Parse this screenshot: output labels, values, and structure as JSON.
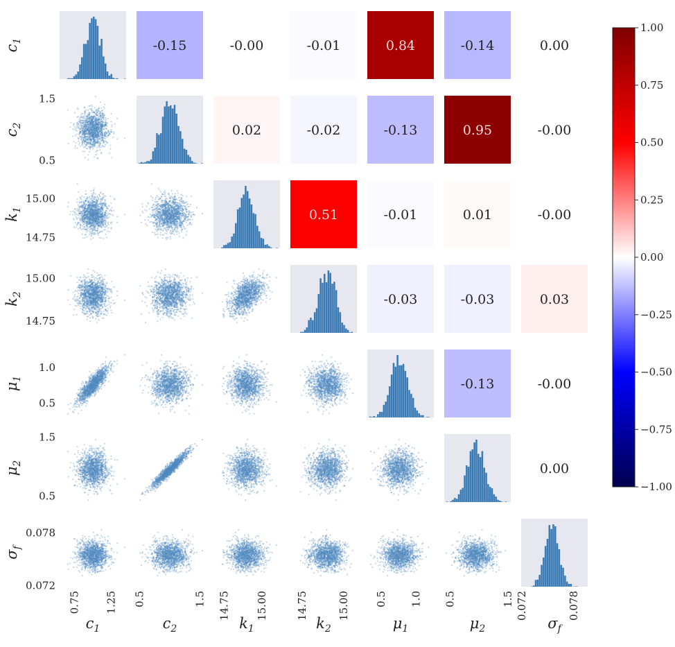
{
  "chart_data": {
    "type": "pairplot",
    "params": [
      {
        "sym": "c",
        "sub": "1"
      },
      {
        "sym": "c",
        "sub": "2"
      },
      {
        "sym": "k",
        "sub": "1"
      },
      {
        "sym": "k",
        "sub": "2"
      },
      {
        "sym": "μ",
        "sub": "1"
      },
      {
        "sym": "μ",
        "sub": "2"
      },
      {
        "sym": "σ",
        "sub": "f"
      }
    ],
    "ranges": [
      [
        0.55,
        1.45
      ],
      [
        0.45,
        1.55
      ],
      [
        14.68,
        15.12
      ],
      [
        14.68,
        15.08
      ],
      [
        0.3,
        1.25
      ],
      [
        0.4,
        1.55
      ],
      [
        0.0719,
        0.0796
      ]
    ],
    "stats": [
      {
        "mean": 1.0,
        "sd": 0.1
      },
      {
        "mean": 1.0,
        "sd": 0.15
      },
      {
        "mean": 14.9,
        "sd": 0.055
      },
      {
        "mean": 14.9,
        "sd": 0.05
      },
      {
        "mean": 0.75,
        "sd": 0.12
      },
      {
        "mean": 0.95,
        "sd": 0.15
      },
      {
        "mean": 0.0755,
        "sd": 0.0008
      }
    ],
    "correlations": [
      [
        1.0,
        -0.15,
        -0.0,
        -0.01,
        0.84,
        -0.14,
        0.0
      ],
      [
        -0.15,
        1.0,
        0.02,
        -0.02,
        -0.13,
        0.95,
        -0.0
      ],
      [
        -0.0,
        0.02,
        1.0,
        0.51,
        -0.01,
        0.01,
        -0.0
      ],
      [
        -0.01,
        -0.02,
        0.51,
        1.0,
        -0.03,
        -0.03,
        0.03
      ],
      [
        0.84,
        -0.13,
        -0.01,
        -0.03,
        1.0,
        -0.13,
        -0.0
      ],
      [
        -0.14,
        0.95,
        0.01,
        -0.03,
        -0.13,
        1.0,
        0.0
      ],
      [
        0.0,
        -0.0,
        -0.0,
        0.03,
        -0.0,
        0.0,
        1.0
      ]
    ],
    "upper_labels": [
      [
        "",
        "-0.15",
        "-0.00",
        "-0.01",
        "0.84",
        "-0.14",
        "0.00"
      ],
      [
        "",
        "",
        "0.02",
        "-0.02",
        "-0.13",
        "0.95",
        "-0.00"
      ],
      [
        "",
        "",
        "",
        "0.51",
        "-0.01",
        "0.01",
        "-0.00"
      ],
      [
        "",
        "",
        "",
        "",
        "-0.03",
        "-0.03",
        "0.03"
      ],
      [
        "",
        "",
        "",
        "",
        "",
        "-0.13",
        "-0.00"
      ],
      [
        "",
        "",
        "",
        "",
        "",
        "",
        "0.00"
      ],
      [
        "",
        "",
        "",
        "",
        "",
        "",
        ""
      ]
    ],
    "y_ticks": [
      [],
      [
        "1.5",
        "0.5"
      ],
      [
        "15.00",
        "14.75"
      ],
      [
        "15.00",
        "14.75"
      ],
      [
        "1.0",
        "0.5"
      ],
      [
        "1.5",
        "0.5"
      ],
      [
        "0.078",
        "0.072"
      ]
    ],
    "y_tick_values": [
      [],
      [
        1.5,
        0.5
      ],
      [
        15.0,
        14.75
      ],
      [
        15.0,
        14.75
      ],
      [
        1.0,
        0.5
      ],
      [
        1.5,
        0.5
      ],
      [
        0.078,
        0.072
      ]
    ],
    "x_ticks": [
      [
        "0.75",
        "1.25"
      ],
      [
        "0.5",
        "1.5"
      ],
      [
        "14.75",
        "15.00"
      ],
      [
        "14.75",
        "15.00"
      ],
      [
        "0.5",
        "1.0"
      ],
      [
        "0.5",
        "1.5"
      ],
      [
        "0.072",
        "0.078"
      ]
    ],
    "x_tick_values": [
      [
        0.75,
        1.25
      ],
      [
        0.5,
        1.5
      ],
      [
        14.75,
        15.0
      ],
      [
        14.75,
        15.0
      ],
      [
        0.5,
        1.0
      ],
      [
        0.5,
        1.5
      ],
      [
        0.072,
        0.078
      ]
    ],
    "colorbar": {
      "ticks": [
        "1.00",
        "0.75",
        "0.50",
        "0.25",
        "0.00",
        "−0.25",
        "−0.50",
        "−0.75",
        "−1.00"
      ],
      "values": [
        1.0,
        0.75,
        0.5,
        0.25,
        0.0,
        -0.25,
        -0.5,
        -0.75,
        -1.0
      ],
      "range": [
        -1.0,
        1.0
      ]
    },
    "colors": {
      "histogram": "#3a7ab5",
      "scatter": "#4f89bf",
      "diag_bg": "#e7e7ef",
      "cmap": "seismic"
    },
    "grid": false
  }
}
